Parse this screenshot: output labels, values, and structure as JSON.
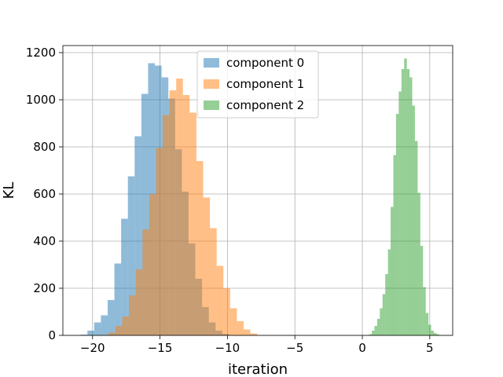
{
  "chart_data": {
    "type": "histogram",
    "xlabel": "iteration",
    "ylabel": "KL",
    "xlim": [
      -22.2,
      6.7
    ],
    "ylim": [
      0,
      1230
    ],
    "xticks": [
      -20,
      -15,
      -10,
      -5,
      0,
      5
    ],
    "xtick_labels": [
      "−20",
      "−15",
      "−10",
      "−5",
      "0",
      "5"
    ],
    "yticks": [
      0,
      200,
      400,
      600,
      800,
      1000,
      1200
    ],
    "ytick_labels": [
      "0",
      "200",
      "400",
      "600",
      "800",
      "1000",
      "1200"
    ],
    "grid": true,
    "legend_position": "top-center",
    "series": [
      {
        "name": "component 0",
        "color": "#1f77b4",
        "alpha": 0.5,
        "bin_start": -20.88,
        "bin_width": 0.5,
        "counts": [
          3,
          20,
          55,
          85,
          150,
          305,
          495,
          675,
          845,
          1025,
          1155,
          1145,
          1095,
          1005,
          790,
          610,
          390,
          240,
          120,
          55,
          20,
          6
        ]
      },
      {
        "name": "component 1",
        "color": "#ff7f0e",
        "alpha": 0.5,
        "bin_start": -19.3,
        "bin_width": 0.5,
        "counts": [
          2,
          12,
          40,
          80,
          170,
          280,
          450,
          600,
          795,
          935,
          1040,
          1090,
          1020,
          945,
          740,
          585,
          455,
          295,
          200,
          115,
          60,
          25,
          8
        ]
      },
      {
        "name": "component 2",
        "color": "#2ca02c",
        "alpha": 0.5,
        "bin_start": 0.5,
        "bin_width": 0.2,
        "counts": [
          5,
          20,
          40,
          70,
          115,
          175,
          260,
          365,
          545,
          765,
          940,
          1035,
          1130,
          1175,
          1130,
          1095,
          975,
          825,
          605,
          380,
          205,
          95,
          45,
          20,
          10,
          5
        ]
      }
    ]
  }
}
